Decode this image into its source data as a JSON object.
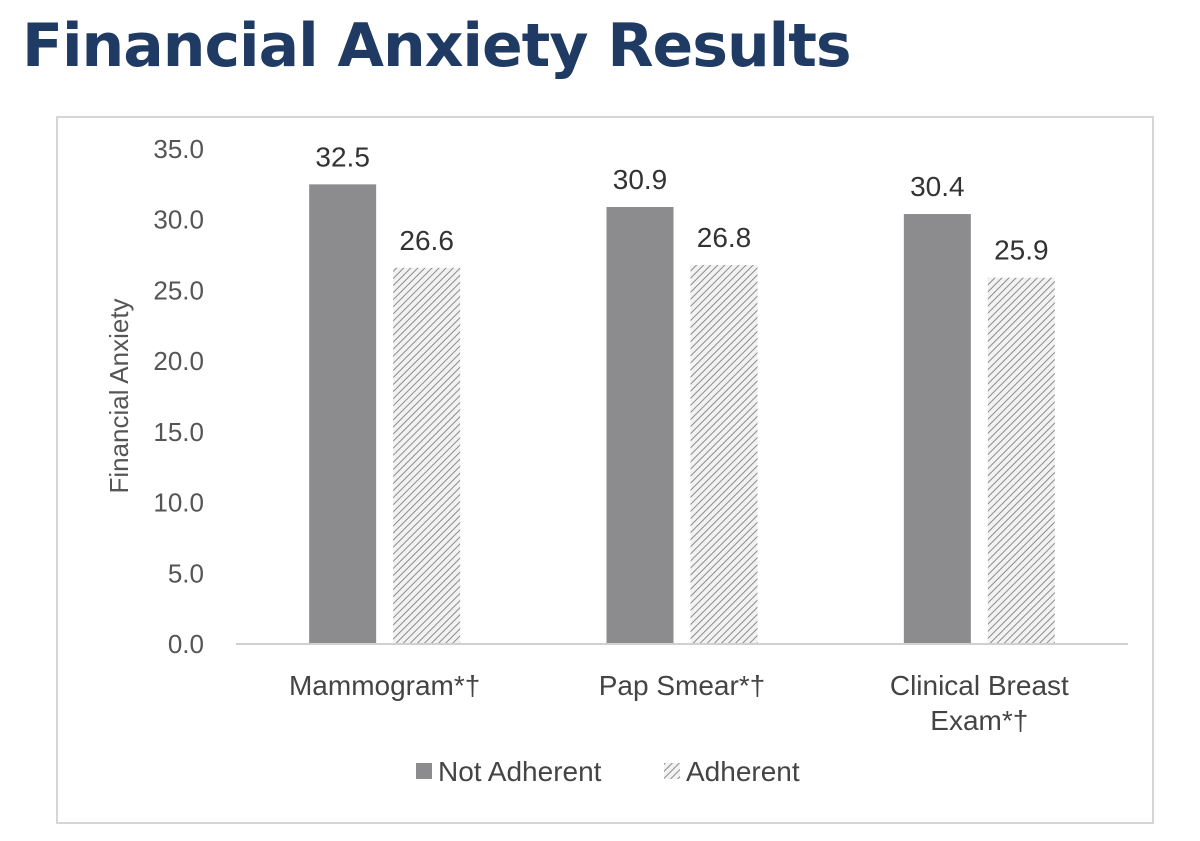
{
  "slide": {
    "title": "Financial Anxiety Results"
  },
  "colors": {
    "title": "#1f3b63",
    "not_adherent": "#8c8c8e",
    "adherent_hatch": "#8c8c8e",
    "axis": "#d0d0d0"
  },
  "chart_data": {
    "type": "bar",
    "categories": [
      [
        "Mammogram*†"
      ],
      [
        "Pap Smear*†"
      ],
      [
        "Clinical Breast",
        "Exam*†"
      ]
    ],
    "series": [
      {
        "name": "Not Adherent",
        "values": [
          32.5,
          30.9,
          30.4
        ],
        "fill": "solid"
      },
      {
        "name": "Adherent",
        "values": [
          26.6,
          26.8,
          25.9
        ],
        "fill": "hatched"
      }
    ],
    "ylabel": "Financial Anxiety",
    "xlabel": "",
    "ylim": [
      0,
      35
    ],
    "yticks": [
      "0.0",
      "5.0",
      "10.0",
      "15.0",
      "20.0",
      "25.0",
      "30.0",
      "35.0"
    ],
    "grid": false,
    "legend": "bottom-center",
    "data_labels": true
  }
}
